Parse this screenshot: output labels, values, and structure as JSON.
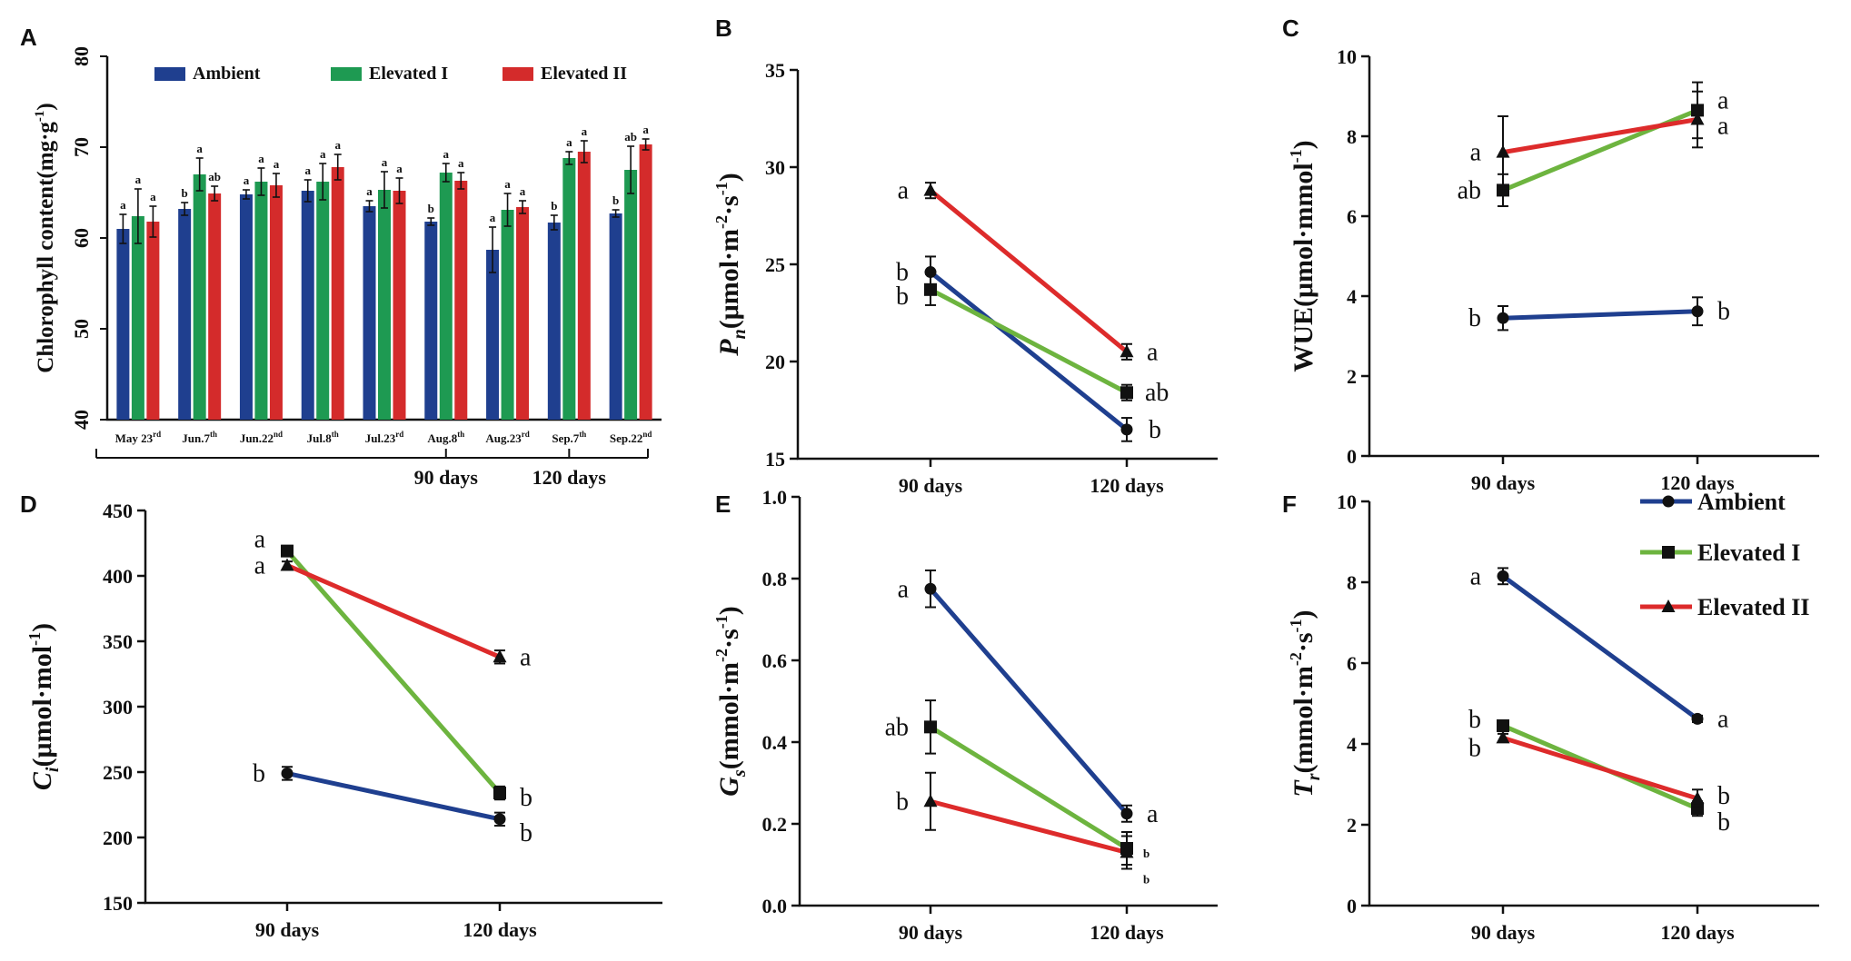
{
  "colors": {
    "ambient": "#1f3f8f",
    "elevated1": "#6db43f",
    "elevated2": "#dd2b2b",
    "bar_ambient": "#1f3f8f",
    "bar_elevated1": "#1e9a52",
    "bar_elevated2": "#d42b2b"
  },
  "legend_labels": [
    "Ambient",
    "Elevated I",
    "Elevated II"
  ],
  "chart_data": [
    {
      "panel": "A",
      "type": "bar",
      "ylabel": "Chlorophyll content(mg·g",
      "ylabel_sup": "-1",
      "ylabel_end": ")",
      "ylim": [
        40,
        80
      ],
      "yticks": [
        "40",
        "50",
        "60",
        "70",
        "80"
      ],
      "categories": [
        {
          "base": "May 23",
          "sup": "rd"
        },
        {
          "base": "Jun.7",
          "sup": "th"
        },
        {
          "base": "Jun.22",
          "sup": "nd"
        },
        {
          "base": "Jul.8",
          "sup": "th"
        },
        {
          "base": "Jul.23",
          "sup": "rd"
        },
        {
          "base": "Aug.8",
          "sup": "th"
        },
        {
          "base": "Aug.23",
          "sup": "rd"
        },
        {
          "base": "Sep.7",
          "sup": "th"
        },
        {
          "base": "Sep.22",
          "sup": "nd"
        }
      ],
      "series": [
        {
          "name": "Ambient",
          "values": [
            61.0,
            63.2,
            64.8,
            65.2,
            63.5,
            61.8,
            58.7,
            61.7,
            62.7
          ],
          "errors": [
            1.6,
            0.7,
            0.5,
            1.2,
            0.6,
            0.4,
            2.5,
            0.8,
            0.4
          ],
          "letters": [
            "a",
            "b",
            "a",
            "a",
            "a",
            "b",
            "a",
            "b",
            "b"
          ]
        },
        {
          "name": "Elevated I",
          "values": [
            62.4,
            67.0,
            66.2,
            66.2,
            65.3,
            67.2,
            63.1,
            68.8,
            67.5
          ],
          "errors": [
            3.0,
            1.8,
            1.5,
            2.0,
            2.0,
            1.0,
            1.8,
            0.7,
            2.6
          ],
          "letters": [
            "a",
            "a",
            "a",
            "a",
            "a",
            "a",
            "a",
            "a",
            "ab"
          ]
        },
        {
          "name": "Elevated II",
          "values": [
            61.8,
            64.9,
            65.8,
            67.8,
            65.2,
            66.3,
            63.4,
            69.5,
            70.3
          ],
          "errors": [
            1.7,
            0.8,
            1.3,
            1.4,
            1.4,
            0.9,
            0.7,
            1.2,
            0.6
          ],
          "letters": [
            "a",
            "ab",
            "a",
            "a",
            "a",
            "a",
            "a",
            "a",
            "a"
          ]
        }
      ],
      "timeline_labels": [
        "90 days",
        "120 days"
      ]
    },
    {
      "panel": "B",
      "type": "line",
      "ylabel_main": "P",
      "ylabel_sub": "n",
      "ylabel_rest": "(μmol·m",
      "ylabel_sup1": "-2",
      "ylabel_mid": "·s",
      "ylabel_sup2": "-1",
      "ylabel_end": ")",
      "ylim": [
        15,
        35
      ],
      "yticks": [
        "15",
        "20",
        "25",
        "30",
        "35"
      ],
      "x": [
        "90 days",
        "120 days"
      ],
      "series": [
        {
          "name": "Ambient",
          "values": [
            24.6,
            16.5
          ],
          "errors": [
            0.8,
            0.6
          ],
          "letters": [
            "b",
            "b"
          ]
        },
        {
          "name": "Elevated I",
          "values": [
            23.7,
            18.4
          ],
          "errors": [
            0.8,
            0.4
          ],
          "letters": [
            "b",
            "ab"
          ]
        },
        {
          "name": "Elevated II",
          "values": [
            28.8,
            20.5
          ],
          "errors": [
            0.4,
            0.4
          ],
          "letters": [
            "a",
            "a"
          ]
        }
      ]
    },
    {
      "panel": "C",
      "type": "line",
      "ylabel_main": "WUE(μmol·mmol",
      "ylabel_sup1": "-1",
      "ylabel_end": ")",
      "ylim": [
        0,
        10
      ],
      "yticks": [
        "0",
        "2",
        "4",
        "6",
        "8",
        "10"
      ],
      "x": [
        "90 days",
        "120 days"
      ],
      "series": [
        {
          "name": "Ambient",
          "values": [
            3.45,
            3.62
          ],
          "errors": [
            0.3,
            0.35
          ],
          "letters": [
            "b",
            "b"
          ]
        },
        {
          "name": "Elevated I",
          "values": [
            6.65,
            8.65
          ],
          "errors": [
            0.4,
            0.7
          ],
          "letters": [
            "ab",
            "a"
          ]
        },
        {
          "name": "Elevated II",
          "values": [
            7.6,
            8.42
          ],
          "errors": [
            0.9,
            0.7
          ],
          "letters": [
            "a",
            "a"
          ]
        }
      ]
    },
    {
      "panel": "D",
      "type": "line",
      "ylabel_main": "C",
      "ylabel_sub": "i",
      "ylabel_rest": "(μmol·mol",
      "ylabel_sup1": "-1",
      "ylabel_end": ")",
      "ylim": [
        150,
        450
      ],
      "yticks": [
        "150",
        "200",
        "250",
        "300",
        "350",
        "400",
        "450"
      ],
      "x": [
        "90 days",
        "120 days"
      ],
      "series": [
        {
          "name": "Ambient",
          "values": [
            249,
            214
          ],
          "errors": [
            5,
            5
          ],
          "letters": [
            "b",
            "b"
          ]
        },
        {
          "name": "Elevated I",
          "values": [
            419,
            234
          ],
          "errors": [
            4,
            5
          ],
          "letters": [
            "a",
            "b"
          ]
        },
        {
          "name": "Elevated II",
          "values": [
            408,
            338
          ],
          "errors": [
            3,
            5
          ],
          "letters": [
            "a",
            "a"
          ]
        }
      ]
    },
    {
      "panel": "E",
      "type": "line",
      "ylabel_main": "G",
      "ylabel_sub": "s",
      "ylabel_rest": "(mmol·m",
      "ylabel_sup1": "-2",
      "ylabel_mid": "·s",
      "ylabel_sup2": "-1",
      "ylabel_end": ")",
      "ylim": [
        0,
        1.0
      ],
      "yticks": [
        "0.0",
        "0.2",
        "0.4",
        "0.6",
        "0.8",
        "1.0"
      ],
      "x": [
        "90 days",
        "120 days"
      ],
      "series": [
        {
          "name": "Ambient",
          "values": [
            0.775,
            0.225
          ],
          "errors": [
            0.045,
            0.02
          ],
          "letters": [
            "a",
            "a"
          ]
        },
        {
          "name": "Elevated I",
          "values": [
            0.437,
            0.14
          ],
          "errors": [
            0.065,
            0.04
          ],
          "letters": [
            "ab",
            "b"
          ]
        },
        {
          "name": "Elevated II",
          "values": [
            0.255,
            0.13
          ],
          "errors": [
            0.07,
            0.04
          ],
          "letters": [
            "b",
            "b"
          ]
        }
      ]
    },
    {
      "panel": "F",
      "type": "line",
      "ylabel_main": "T",
      "ylabel_sub": "r",
      "ylabel_rest": "(mmol·m",
      "ylabel_sup1": "-2",
      "ylabel_mid": "·s",
      "ylabel_sup2": "-1",
      "ylabel_end": ")",
      "ylim": [
        0,
        10
      ],
      "yticks": [
        "0",
        "2",
        "4",
        "6",
        "8",
        "10"
      ],
      "x": [
        "90 days",
        "120 days"
      ],
      "series": [
        {
          "name": "Ambient",
          "values": [
            8.15,
            4.62
          ],
          "errors": [
            0.2,
            0.08
          ],
          "letters": [
            "a",
            "a"
          ]
        },
        {
          "name": "Elevated I",
          "values": [
            4.45,
            2.4
          ],
          "errors": [
            0.12,
            0.18
          ],
          "letters": [
            "b",
            "b"
          ]
        },
        {
          "name": "Elevated II",
          "values": [
            4.15,
            2.65
          ],
          "errors": [
            0.1,
            0.22
          ],
          "letters": [
            "b",
            "b"
          ]
        }
      ]
    }
  ]
}
